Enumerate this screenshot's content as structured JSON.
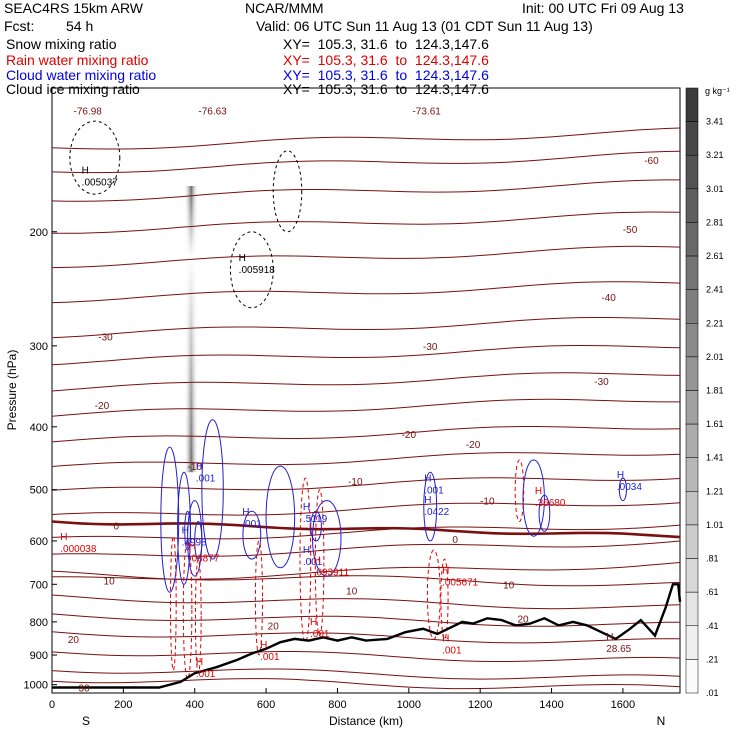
{
  "header": {
    "model": "SEAC4RS 15km ARW",
    "center": "NCAR/MMM",
    "init": "Init: 00 UTC Fri 09 Aug 13",
    "fcst_label": "Fcst:",
    "fcst_value": "54 h",
    "valid": "Valid: 06 UTC Sun 11 Aug 13 (01 CDT Sun 11 Aug 13)",
    "legend": [
      {
        "label": "Snow mixing ratio",
        "xy": "",
        "color": "#000000"
      },
      {
        "label": "Rain water mixing ratio",
        "xy": "XY=  105.3, 31.6  to  124.3,147.6",
        "color": "#e00000"
      },
      {
        "label": "Cloud water mixing ratio",
        "xy": "XY=  105.3, 31.6  to  124.3,147.6",
        "color": "#0000e0"
      },
      {
        "label": "Cloud ice mixing ratio",
        "xy": "XY=  105.3, 31.6  to  124.3,147.6",
        "color": "#000000"
      }
    ],
    "snow_xy": "XY=  105.3, 31.6  to  124.3,147.6"
  },
  "chart_data": {
    "type": "contour",
    "xlabel": "Distance (km)",
    "ylabel": "Pressure (hPa)",
    "x_ticks": [
      0,
      200,
      400,
      600,
      800,
      1000,
      1200,
      1400,
      1600
    ],
    "xlim": [
      0,
      1760
    ],
    "y_ticks": [
      200,
      300,
      400,
      500,
      600,
      700,
      800,
      900,
      1000
    ],
    "ylim": [
      1030,
      120
    ],
    "y_scale": "log",
    "left_end_label": "S",
    "right_end_label": "N",
    "colorbar": {
      "unit": "g kg⁻¹",
      "labels": [
        "3.41",
        "3.21",
        "3.01",
        "2.81",
        "2.61",
        "2.41",
        "2.21",
        "2.01",
        "1.81",
        "1.61",
        "1.41",
        "1.21",
        "1.01",
        ".81",
        ".61",
        ".41",
        ".21",
        ".01"
      ]
    },
    "temperature_contours": {
      "units": "C",
      "color": "#7a1010",
      "labels": [
        {
          "text": "-76.98",
          "x": 100,
          "p": 130
        },
        {
          "text": "-76.63",
          "x": 450,
          "p": 130
        },
        {
          "text": "-73.61",
          "x": 1050,
          "p": 130
        },
        {
          "text": "-60",
          "x": 1680,
          "p": 155
        },
        {
          "text": "-50",
          "x": 1620,
          "p": 198
        },
        {
          "text": "-40",
          "x": 1560,
          "p": 252
        },
        {
          "text": "-30",
          "x": 150,
          "p": 290
        },
        {
          "text": "-30",
          "x": 1060,
          "p": 300
        },
        {
          "text": "-30",
          "x": 1540,
          "p": 340
        },
        {
          "text": "-20",
          "x": 140,
          "p": 370
        },
        {
          "text": "-20",
          "x": 1000,
          "p": 410
        },
        {
          "text": "-20",
          "x": 1180,
          "p": 425
        },
        {
          "text": "-10",
          "x": 400,
          "p": 460
        },
        {
          "text": "-10",
          "x": 850,
          "p": 485
        },
        {
          "text": "-10",
          "x": 1220,
          "p": 520
        },
        {
          "text": "0",
          "x": 180,
          "p": 568
        },
        {
          "text": "0",
          "x": 1130,
          "p": 596
        },
        {
          "text": "10",
          "x": 160,
          "p": 690
        },
        {
          "text": "10",
          "x": 840,
          "p": 715
        },
        {
          "text": "10",
          "x": 1280,
          "p": 700
        },
        {
          "text": "20",
          "x": 620,
          "p": 810
        },
        {
          "text": "20",
          "x": 60,
          "p": 850
        },
        {
          "text": "20",
          "x": 1320,
          "p": 790
        },
        {
          "text": "30",
          "x": 90,
          "p": 1010
        }
      ],
      "freezing_level_label": "0"
    },
    "terrain_pressure": [
      [
        0,
        1010
      ],
      [
        300,
        1010
      ],
      [
        360,
        990
      ],
      [
        400,
        960
      ],
      [
        460,
        940
      ],
      [
        520,
        915
      ],
      [
        560,
        895
      ],
      [
        600,
        880
      ],
      [
        640,
        860
      ],
      [
        680,
        850
      ],
      [
        720,
        855
      ],
      [
        760,
        845
      ],
      [
        800,
        855
      ],
      [
        840,
        845
      ],
      [
        880,
        855
      ],
      [
        940,
        850
      ],
      [
        990,
        830
      ],
      [
        1040,
        820
      ],
      [
        1080,
        835
      ],
      [
        1120,
        815
      ],
      [
        1150,
        800
      ],
      [
        1180,
        805
      ],
      [
        1220,
        790
      ],
      [
        1260,
        795
      ],
      [
        1300,
        810
      ],
      [
        1340,
        805
      ],
      [
        1380,
        790
      ],
      [
        1420,
        810
      ],
      [
        1460,
        800
      ],
      [
        1500,
        810
      ],
      [
        1540,
        830
      ],
      [
        1580,
        850
      ],
      [
        1620,
        820
      ],
      [
        1650,
        795
      ],
      [
        1690,
        840
      ],
      [
        1720,
        760
      ],
      [
        1740,
        700
      ],
      [
        1755,
        700
      ],
      [
        1760,
        745
      ]
    ],
    "maxima_labels": [
      {
        "text": ".005037",
        "series": "ice",
        "x": 100,
        "p": 165
      },
      {
        "text": ".005918",
        "series": "ice",
        "x": 540,
        "p": 225
      },
      {
        "text": ".001",
        "series": "cloud",
        "x": 420,
        "p": 472
      },
      {
        "text": ".001",
        "series": "cloud",
        "x": 550,
        "p": 555
      },
      {
        "text": ".4998",
        "series": "cloud",
        "x": 380,
        "p": 593
      },
      {
        "text": ".5119",
        "series": "cloud",
        "x": 720,
        "p": 545
      },
      {
        "text": ".001",
        "series": "cloud",
        "x": 720,
        "p": 635
      },
      {
        "text": ".0422",
        "series": "cloud",
        "x": 1060,
        "p": 532
      },
      {
        "text": ".001",
        "series": "cloud",
        "x": 1060,
        "p": 493
      },
      {
        "text": ".0034",
        "series": "cloud",
        "x": 1600,
        "p": 487
      },
      {
        "text": ".000038",
        "series": "rain",
        "x": 40,
        "p": 607
      },
      {
        "text": ".06877",
        "series": "rain",
        "x": 400,
        "p": 627
      },
      {
        "text": ".093911",
        "series": "rain",
        "x": 750,
        "p": 660
      },
      {
        "text": ".005671",
        "series": "rain",
        "x": 1110,
        "p": 683
      },
      {
        "text": ".001",
        "series": "rain",
        "x": 740,
        "p": 820
      },
      {
        "text": ".001",
        "series": "rain",
        "x": 1110,
        "p": 870
      },
      {
        "text": ".001",
        "series": "rain",
        "x": 600,
        "p": 890
      },
      {
        "text": ".001",
        "series": "rain",
        "x": 420,
        "p": 945
      },
      {
        "text": ".36680",
        "series": "rain",
        "x": 1370,
        "p": 515
      },
      {
        "text": "28.65",
        "series": "temperature",
        "x": 1570,
        "p": 865
      }
    ]
  }
}
